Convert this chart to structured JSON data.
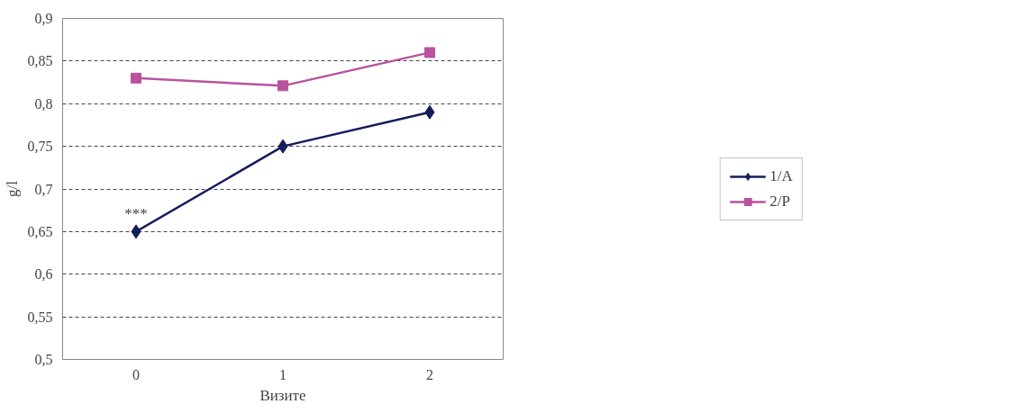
{
  "chart_data": {
    "type": "line",
    "xlabel": "Визите",
    "ylabel": "g/l",
    "categories": [
      "0",
      "1",
      "2"
    ],
    "series": [
      {
        "name": "1/A",
        "color": "#141c5c",
        "values": [
          0.65,
          0.75,
          0.79
        ],
        "marker": "diamond"
      },
      {
        "name": "2/P",
        "color": "#b9529f",
        "values": [
          0.83,
          0.821,
          0.86
        ],
        "marker": "square"
      }
    ],
    "ylim": [
      0.5,
      0.9
    ],
    "yticks": [
      {
        "value": 0.5,
        "label": "0,5"
      },
      {
        "value": 0.55,
        "label": "0,55"
      },
      {
        "value": 0.6,
        "label": "0,6"
      },
      {
        "value": 0.65,
        "label": "0,65"
      },
      {
        "value": 0.7,
        "label": "0,7"
      },
      {
        "value": 0.75,
        "label": "0,75"
      },
      {
        "value": 0.8,
        "label": "0,8"
      },
      {
        "value": 0.85,
        "label": "0,85"
      },
      {
        "value": 0.9,
        "label": "0,9"
      }
    ],
    "grid": "y",
    "legend": "right",
    "line_style": "solid",
    "annotations": [
      {
        "text": "***",
        "x": "0",
        "y": 0.65
      }
    ]
  }
}
